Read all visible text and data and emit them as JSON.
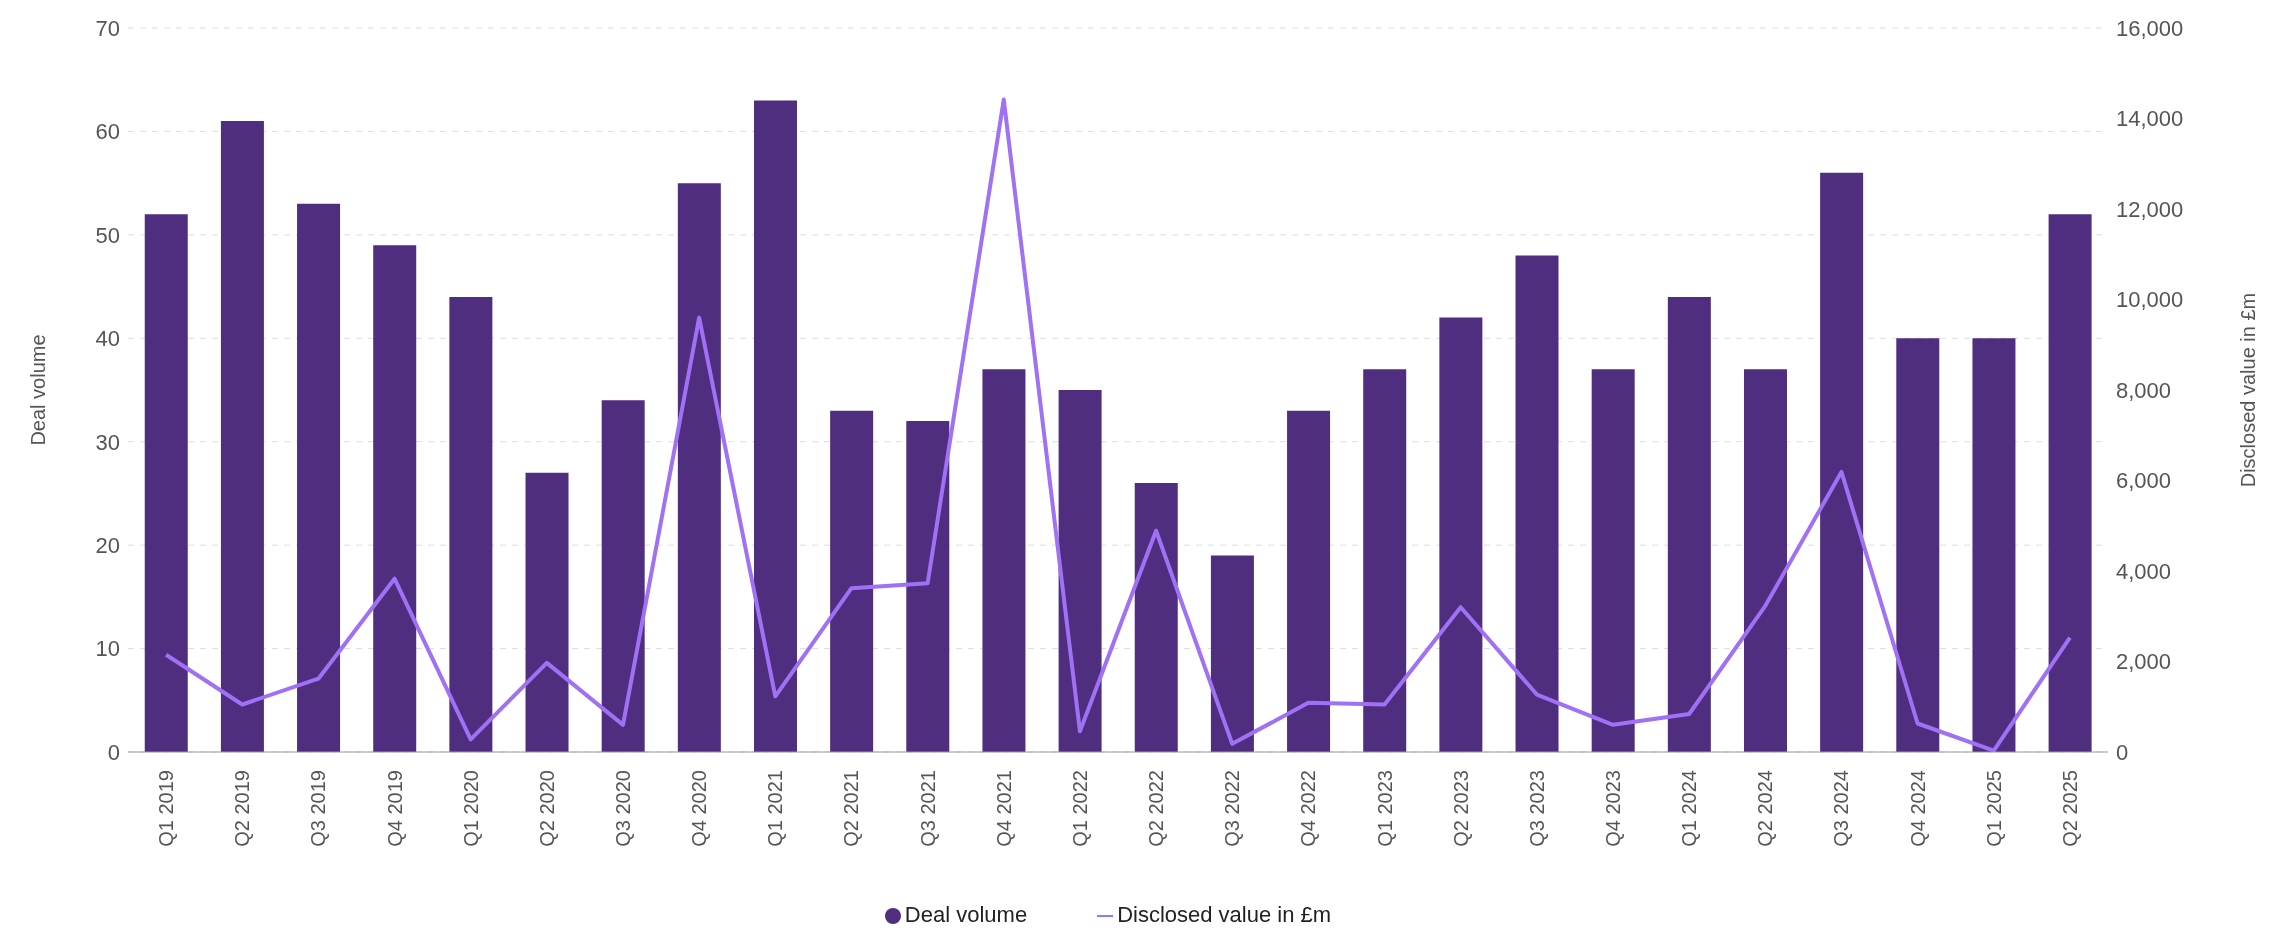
{
  "chart_data": {
    "type": "bar",
    "xlabel": null,
    "ylabel": "Deal volume",
    "y2label": "Disclosed value in £m",
    "categories": [
      "Q1 2019",
      "Q2 2019",
      "Q3 2019",
      "Q4 2019",
      "Q1 2020",
      "Q2 2020",
      "Q3 2020",
      "Q4 2020",
      "Q1 2021",
      "Q2 2021",
      "Q3 2021",
      "Q4 2021",
      "Q1 2022",
      "Q2 2022",
      "Q3 2022",
      "Q4 2022",
      "Q1 2023",
      "Q2 2023",
      "Q3 2023",
      "Q4 2023",
      "Q1 2024",
      "Q2 2024",
      "Q3 2024",
      "Q4 2024",
      "Q1 2025",
      "Q2 2025"
    ],
    "series": [
      {
        "name": "Deal volume",
        "color": "#4f2d7f",
        "values": [
          52,
          61,
          53,
          49,
          44,
          27,
          34,
          55,
          63,
          33,
          32,
          37,
          35,
          26,
          19,
          33,
          37,
          42,
          48,
          37,
          44,
          37,
          56,
          40,
          40,
          52
        ]
      },
      {
        "name": "Disclosed value in £m",
        "type": "line",
        "axis": "y2",
        "color": "#a070f5",
        "values": [
          2150,
          1050,
          1620,
          3830,
          280,
          1970,
          600,
          9600,
          1230,
          3620,
          3730,
          14420,
          460,
          4890,
          180,
          1090,
          1050,
          3200,
          1270,
          600,
          840,
          3230,
          6190,
          630,
          30,
          2530
        ]
      }
    ],
    "ylim": [
      0,
      70
    ],
    "yticks": [
      0,
      10,
      20,
      30,
      40,
      50,
      60,
      70
    ],
    "y2lim": [
      0,
      16000
    ],
    "y2ticks": [
      {
        "value": 0,
        "label": "0"
      },
      {
        "value": 2000,
        "label": "2,000"
      },
      {
        "value": 4000,
        "label": "4,000"
      },
      {
        "value": 6000,
        "label": "6,000"
      },
      {
        "value": 8000,
        "label": "8,000"
      },
      {
        "value": 10000,
        "label": "10,000"
      },
      {
        "value": 12000,
        "label": "12,000"
      },
      {
        "value": 14000,
        "label": "14,000"
      },
      {
        "value": 16000,
        "label": "16,000"
      }
    ],
    "grid": "y",
    "legend": "bottom",
    "marker": "none",
    "line_style": "solid"
  }
}
